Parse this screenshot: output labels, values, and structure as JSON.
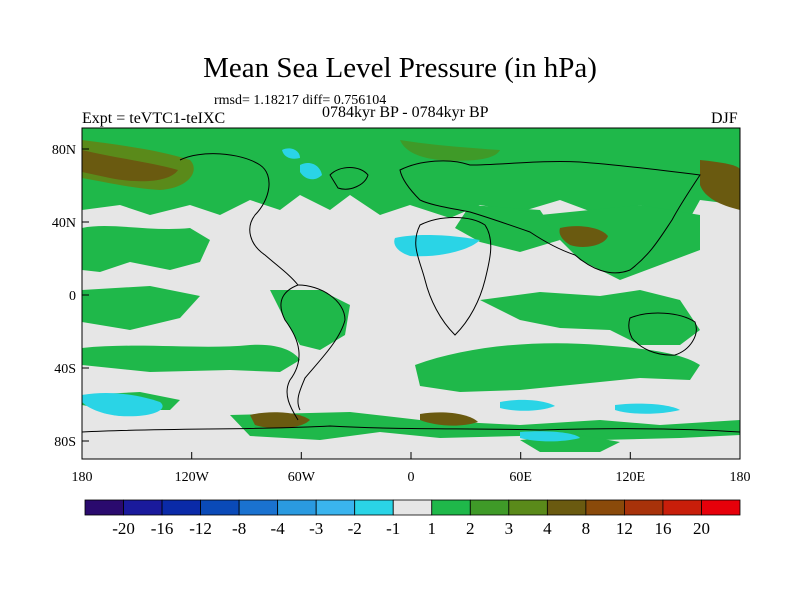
{
  "title": "Mean Sea Level Pressure (in hPa)",
  "stats": "rmsd= 1.18217  diff= 0.756104",
  "experiment": "Expt = teVTC1-teIXC",
  "period": "0784kyr BP - 0784kyr BP",
  "season": "DJF",
  "axes": {
    "lon_ticks": [
      "180",
      "120W",
      "60W",
      "0",
      "60E",
      "120E",
      "180"
    ],
    "lat_ticks": [
      "80N",
      "40N",
      "0",
      "40S",
      "80S"
    ]
  },
  "colorbar": {
    "labels": [
      "-20",
      "-16",
      "-12",
      "-8",
      "-4",
      "-3",
      "-2",
      "-1",
      "1",
      "2",
      "3",
      "4",
      "8",
      "12",
      "16",
      "20"
    ],
    "colors": [
      "#2a0a6e",
      "#1a1a9c",
      "#0a2aa8",
      "#0a4ab8",
      "#1a72d0",
      "#2a9ae0",
      "#3ab4ee",
      "#2ad4e6",
      "#e6e6e6",
      "#1fb84a",
      "#3f9a28",
      "#5a8a1a",
      "#6a5a10",
      "#8a4a0a",
      "#a8320a",
      "#c81e0a",
      "#e6000a"
    ]
  },
  "icons": {
    "map": "world-map-continents"
  }
}
